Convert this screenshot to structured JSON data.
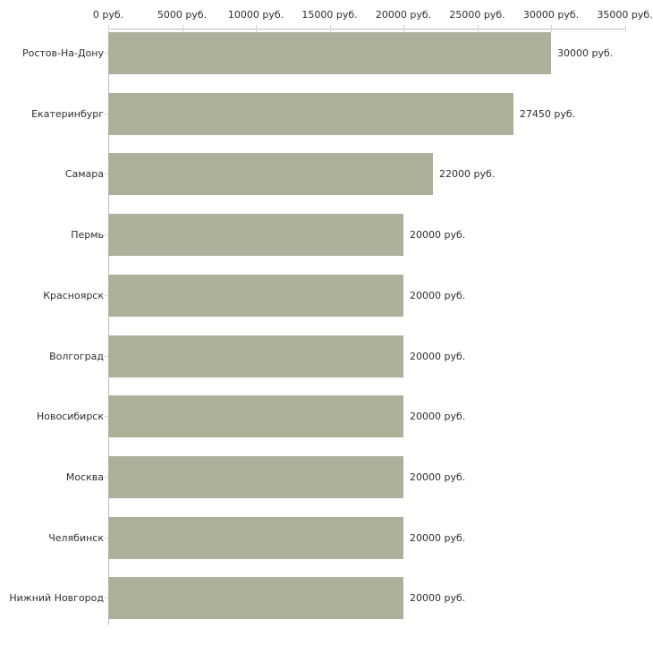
{
  "chart_data": {
    "type": "bar",
    "orientation": "horizontal",
    "title": "",
    "unit": "руб.",
    "categories": [
      "Ростов-На-Дону",
      "Екатеринбург",
      "Самара",
      "Пермь",
      "Красноярск",
      "Волгоград",
      "Новосибирск",
      "Москва",
      "Челябинск",
      "Нижний Новгород"
    ],
    "values": [
      30000,
      27450,
      22000,
      20000,
      20000,
      20000,
      20000,
      20000,
      20000,
      20000
    ],
    "value_labels": [
      "30000 руб.",
      "27450 руб.",
      "22000 руб.",
      "20000 руб.",
      "20000 руб.",
      "20000 руб.",
      "20000 руб.",
      "20000 руб.",
      "20000 руб.",
      "20000 руб."
    ],
    "xlim": [
      0,
      35000
    ],
    "x_ticks": [
      {
        "value": 0,
        "label": "0 руб."
      },
      {
        "value": 5000,
        "label": "5000 руб."
      },
      {
        "value": 10000,
        "label": "10000 руб."
      },
      {
        "value": 15000,
        "label": "15000 руб."
      },
      {
        "value": 20000,
        "label": "20000 руб."
      },
      {
        "value": 25000,
        "label": "25000 руб."
      },
      {
        "value": 30000,
        "label": "30000 руб."
      },
      {
        "value": 35000,
        "label": "35000 руб."
      }
    ],
    "grid": false,
    "legend": false,
    "axis_position": "top",
    "colors": {
      "bar": "#acb29a",
      "axis": "#bdbdbd",
      "tick": "#d6d9b4",
      "text": "#2e2e2e",
      "background": "#ffffff"
    }
  }
}
